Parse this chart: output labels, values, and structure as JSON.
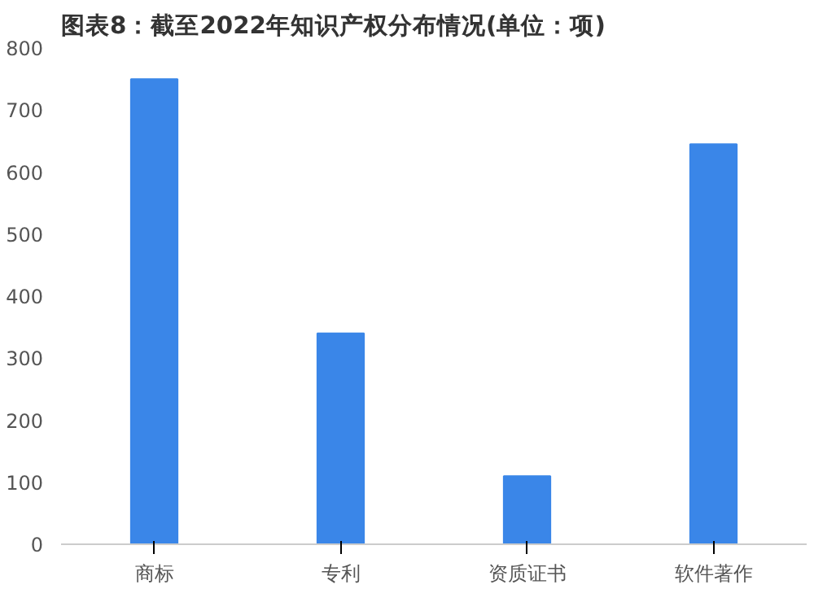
{
  "chart_data": {
    "type": "bar",
    "title": "图表8：截至2022年知识产权分布情况(单位：项)",
    "categories": [
      "商标",
      "专利",
      "资质证书",
      "软件著作"
    ],
    "values": [
      750,
      340,
      110,
      645
    ],
    "color": "#3a86e8",
    "ylim": [
      0,
      800
    ],
    "yticks": [
      0,
      100,
      200,
      300,
      400,
      500,
      600,
      700,
      800
    ],
    "grid": false
  }
}
